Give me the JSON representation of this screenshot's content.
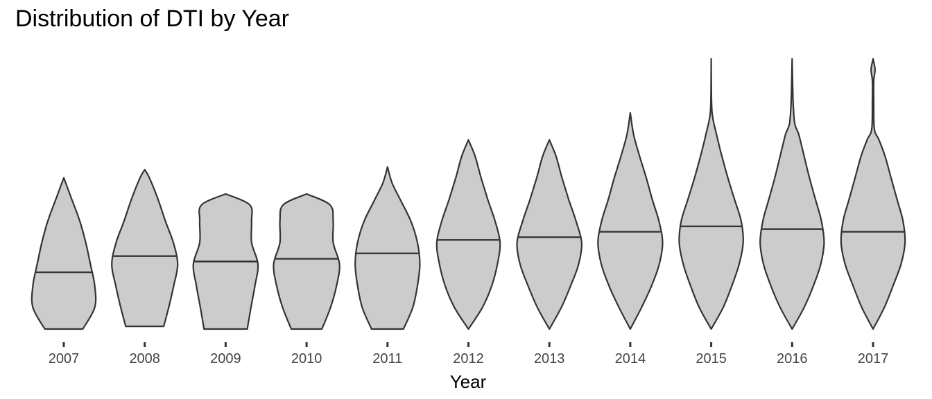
{
  "chart_data": {
    "type": "violin",
    "title": "Distribution of DTI by Year",
    "xlabel": "Year",
    "ylabel": "",
    "categories": [
      "2007",
      "2008",
      "2009",
      "2010",
      "2011",
      "2012",
      "2013",
      "2014",
      "2015",
      "2016",
      "2017"
    ],
    "y_axis_shown": false,
    "grid": false,
    "legend": "none",
    "fill_color": "#cccccc",
    "stroke_color": "#333333",
    "ylim": [
      0,
      100
    ],
    "violins": [
      {
        "year": "2007",
        "min": 0,
        "max": 56,
        "median": 21,
        "profile": [
          [
            0,
            0.57
          ],
          [
            8,
            0.93
          ],
          [
            16,
            0.93
          ],
          [
            24,
            0.8
          ],
          [
            32,
            0.66
          ],
          [
            40,
            0.48
          ],
          [
            48,
            0.24
          ],
          [
            56,
            0
          ]
        ]
      },
      {
        "year": "2008",
        "min": 1,
        "max": 59,
        "median": 27,
        "profile": [
          [
            1,
            0.57
          ],
          [
            8,
            0.72
          ],
          [
            16,
            0.87
          ],
          [
            24,
            0.99
          ],
          [
            32,
            0.86
          ],
          [
            40,
            0.62
          ],
          [
            48,
            0.4
          ],
          [
            56,
            0.14
          ],
          [
            59,
            0
          ]
        ]
      },
      {
        "year": "2009",
        "min": 0,
        "max": 50,
        "median": 25,
        "profile": [
          [
            0,
            0.65
          ],
          [
            8,
            0.76
          ],
          [
            16,
            0.88
          ],
          [
            24,
            0.97
          ],
          [
            32,
            0.78
          ],
          [
            40,
            0.78
          ],
          [
            46,
            0.72
          ],
          [
            50,
            0
          ]
        ]
      },
      {
        "year": "2010",
        "min": 0,
        "max": 50,
        "median": 26,
        "profile": [
          [
            0,
            0.46
          ],
          [
            8,
            0.72
          ],
          [
            16,
            0.9
          ],
          [
            24,
            0.99
          ],
          [
            32,
            0.8
          ],
          [
            40,
            0.8
          ],
          [
            46,
            0.7
          ],
          [
            50,
            0
          ]
        ]
      },
      {
        "year": "2011",
        "min": 0,
        "max": 60,
        "median": 28,
        "profile": [
          [
            0,
            0.48
          ],
          [
            8,
            0.76
          ],
          [
            16,
            0.9
          ],
          [
            24,
            0.97
          ],
          [
            32,
            0.9
          ],
          [
            40,
            0.7
          ],
          [
            48,
            0.38
          ],
          [
            54,
            0.14
          ],
          [
            60,
            0
          ]
        ]
      },
      {
        "year": "2012",
        "min": 0,
        "max": 70,
        "median": 33,
        "profile": [
          [
            0,
            0
          ],
          [
            8,
            0.42
          ],
          [
            16,
            0.7
          ],
          [
            24,
            0.87
          ],
          [
            32,
            0.95
          ],
          [
            40,
            0.8
          ],
          [
            48,
            0.58
          ],
          [
            56,
            0.38
          ],
          [
            64,
            0.2
          ],
          [
            70,
            0
          ]
        ]
      },
      {
        "year": "2013",
        "min": 0,
        "max": 70,
        "median": 34,
        "profile": [
          [
            0,
            0
          ],
          [
            8,
            0.36
          ],
          [
            16,
            0.64
          ],
          [
            24,
            0.88
          ],
          [
            32,
            0.97
          ],
          [
            40,
            0.8
          ],
          [
            48,
            0.58
          ],
          [
            56,
            0.38
          ],
          [
            64,
            0.2
          ],
          [
            70,
            0
          ]
        ]
      },
      {
        "year": "2014",
        "min": 0,
        "max": 80,
        "median": 36,
        "profile": [
          [
            0,
            0
          ],
          [
            8,
            0.34
          ],
          [
            16,
            0.64
          ],
          [
            24,
            0.87
          ],
          [
            32,
            0.97
          ],
          [
            40,
            0.86
          ],
          [
            48,
            0.66
          ],
          [
            56,
            0.48
          ],
          [
            64,
            0.28
          ],
          [
            72,
            0.1
          ],
          [
            80,
            0
          ]
        ]
      },
      {
        "year": "2015",
        "min": 0,
        "max": 100,
        "median": 38,
        "profile": [
          [
            0,
            0
          ],
          [
            8,
            0.36
          ],
          [
            16,
            0.62
          ],
          [
            24,
            0.84
          ],
          [
            32,
            0.96
          ],
          [
            40,
            0.9
          ],
          [
            48,
            0.7
          ],
          [
            56,
            0.5
          ],
          [
            64,
            0.32
          ],
          [
            72,
            0.16
          ],
          [
            78,
            0.05
          ],
          [
            84,
            0.01
          ],
          [
            100,
            0
          ]
        ]
      },
      {
        "year": "2016",
        "min": 0,
        "max": 100,
        "median": 37,
        "profile": [
          [
            0,
            0
          ],
          [
            8,
            0.36
          ],
          [
            16,
            0.64
          ],
          [
            24,
            0.86
          ],
          [
            32,
            0.96
          ],
          [
            40,
            0.88
          ],
          [
            48,
            0.7
          ],
          [
            56,
            0.52
          ],
          [
            64,
            0.36
          ],
          [
            72,
            0.2
          ],
          [
            76,
            0.08
          ],
          [
            84,
            0.03
          ],
          [
            100,
            0
          ]
        ]
      },
      {
        "year": "2017",
        "min": 0,
        "max": 100,
        "median": 36,
        "profile": [
          [
            0,
            0
          ],
          [
            8,
            0.34
          ],
          [
            16,
            0.6
          ],
          [
            24,
            0.84
          ],
          [
            32,
            0.96
          ],
          [
            40,
            0.9
          ],
          [
            48,
            0.72
          ],
          [
            56,
            0.54
          ],
          [
            64,
            0.36
          ],
          [
            70,
            0.18
          ],
          [
            74,
            0.04
          ],
          [
            84,
            0.02
          ],
          [
            92,
            0.02
          ],
          [
            96,
            0.06
          ],
          [
            100,
            0
          ]
        ]
      }
    ]
  }
}
